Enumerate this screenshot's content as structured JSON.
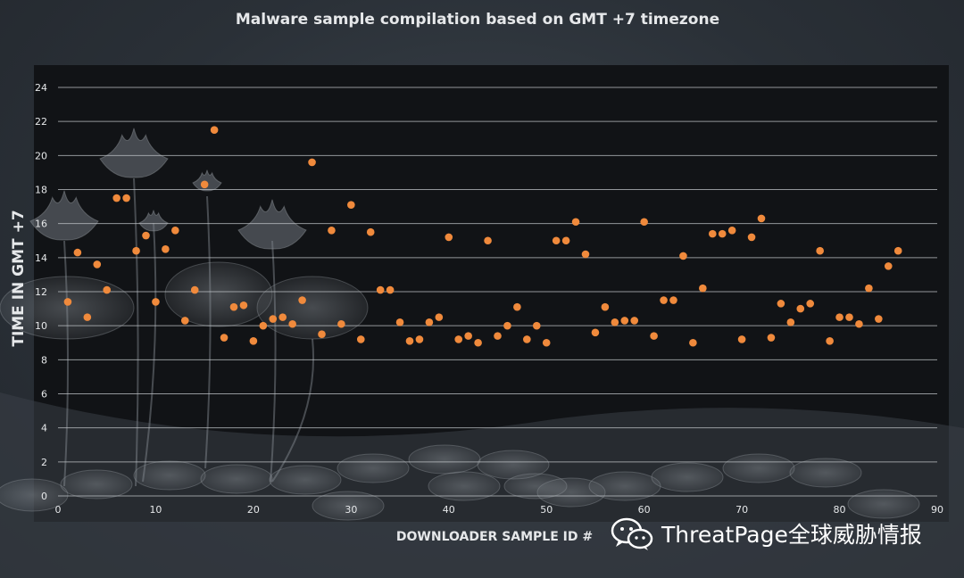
{
  "title": "Malware sample compilation based on GMT +7 timezone",
  "watermark": "ThreatPage全球威胁情报",
  "colors": {
    "background": "#2b3138",
    "plot_area": "#111316",
    "marker": "#f08a3c",
    "gridline": "#bfc3c7",
    "text": "#e6e8ea"
  },
  "chart_data": {
    "type": "scatter",
    "title": "Malware sample compilation based on GMT +7 timezone",
    "xlabel": "DOWNLOADER SAMPLE ID #",
    "ylabel": "TIME IN GMT +7",
    "xlim": [
      0,
      90
    ],
    "ylim": [
      0,
      24
    ],
    "xticks": [
      0,
      10,
      20,
      30,
      40,
      50,
      60,
      70,
      80,
      90
    ],
    "yticks": [
      0,
      2,
      4,
      6,
      8,
      10,
      12,
      14,
      16,
      18,
      20,
      22,
      24
    ],
    "grid": true,
    "legend": "none",
    "series": [
      {
        "x": [
          1,
          2,
          3,
          4,
          5,
          6,
          7,
          8,
          9,
          10,
          11,
          12,
          13,
          14,
          15,
          16,
          17,
          18,
          19,
          20,
          21,
          22,
          23,
          24,
          25,
          26,
          27,
          28,
          29,
          30,
          31,
          32,
          33,
          34,
          35,
          36,
          37,
          38,
          39,
          40,
          41,
          42,
          43,
          44,
          45,
          46,
          47,
          48,
          49,
          50,
          51,
          52,
          53,
          54,
          55,
          56,
          57,
          58,
          59,
          60,
          61,
          62,
          63,
          64,
          65,
          66,
          67,
          68,
          69,
          70,
          71,
          72,
          73,
          74,
          75,
          76,
          77,
          78,
          79,
          80,
          81,
          82,
          83,
          84,
          85,
          86
        ],
        "y": [
          11.4,
          14.3,
          10.5,
          13.6,
          12.1,
          17.5,
          17.5,
          14.4,
          15.3,
          11.4,
          14.5,
          15.6,
          10.3,
          12.1,
          18.3,
          21.5,
          9.3,
          11.1,
          11.2,
          9.1,
          10.0,
          10.4,
          10.5,
          10.1,
          11.5,
          19.6,
          9.5,
          15.6,
          10.1,
          17.1,
          9.2,
          15.5,
          12.1,
          12.1,
          10.2,
          9.1,
          9.2,
          10.2,
          10.5,
          15.2,
          9.2,
          9.4,
          9.0,
          15.0,
          9.4,
          10.0,
          11.1,
          9.2,
          10.0,
          9.0,
          15.0,
          15.0,
          16.1,
          14.2,
          9.6,
          11.1,
          10.2,
          10.3,
          10.3,
          16.1,
          9.4,
          11.5,
          11.5,
          14.1,
          9.0,
          12.2,
          15.4,
          15.4,
          15.6,
          9.2,
          15.2,
          16.3,
          9.3,
          11.3,
          10.2,
          11.0,
          11.3,
          14.4,
          9.1,
          10.5,
          10.5,
          10.1,
          12.2,
          10.4,
          13.5,
          14.4
        ]
      }
    ]
  }
}
